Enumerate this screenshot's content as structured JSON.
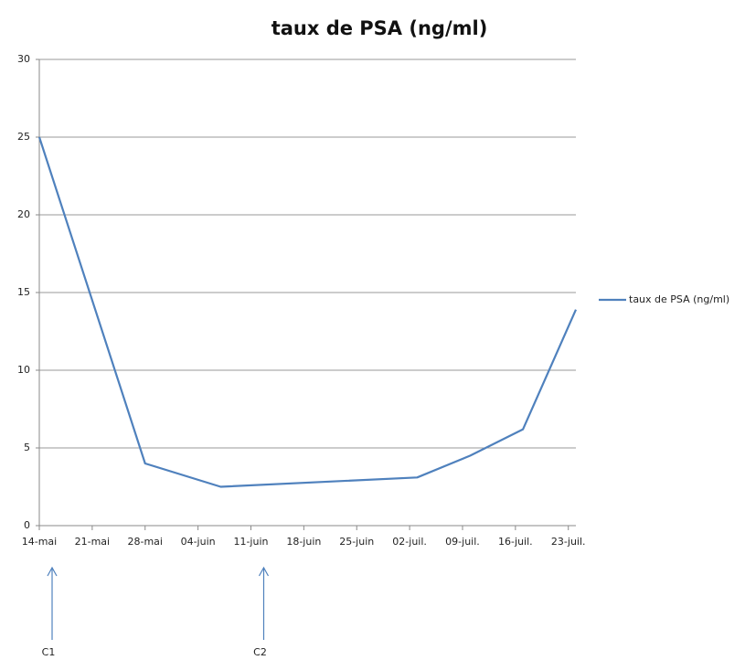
{
  "chart_data": {
    "type": "line",
    "title": "taux de PSA (ng/ml)",
    "x": [
      "05-14",
      "05-28",
      "06-07",
      "07-03",
      "07-10",
      "07-17",
      "07-24"
    ],
    "series": [
      {
        "name": "taux de PSA (ng/ml)",
        "color": "#4f81bd",
        "values": [
          25.0,
          4.0,
          2.5,
          3.1,
          4.5,
          6.2,
          13.9
        ]
      }
    ],
    "xlim": [
      "05-14",
      "07-24"
    ],
    "xticks": [
      {
        "value": "05-14",
        "label": "14-mai"
      },
      {
        "value": "05-21",
        "label": "21-mai"
      },
      {
        "value": "05-28",
        "label": "28-mai"
      },
      {
        "value": "06-04",
        "label": "04-juin"
      },
      {
        "value": "06-11",
        "label": "11-juin"
      },
      {
        "value": "06-18",
        "label": "18-juin"
      },
      {
        "value": "06-25",
        "label": "25-juin"
      },
      {
        "value": "07-02",
        "label": "02-juil."
      },
      {
        "value": "07-09",
        "label": "09-juil."
      },
      {
        "value": "07-16",
        "label": "16-juil."
      },
      {
        "value": "07-23",
        "label": "23-juil."
      }
    ],
    "ylim": [
      0,
      30
    ],
    "yticks": [
      0,
      5,
      10,
      15,
      20,
      25,
      30
    ],
    "grid": true,
    "legend": "right",
    "annotations": [
      {
        "text": "C1",
        "x": "05-14"
      },
      {
        "text": "C2",
        "x": "06-11"
      }
    ]
  }
}
